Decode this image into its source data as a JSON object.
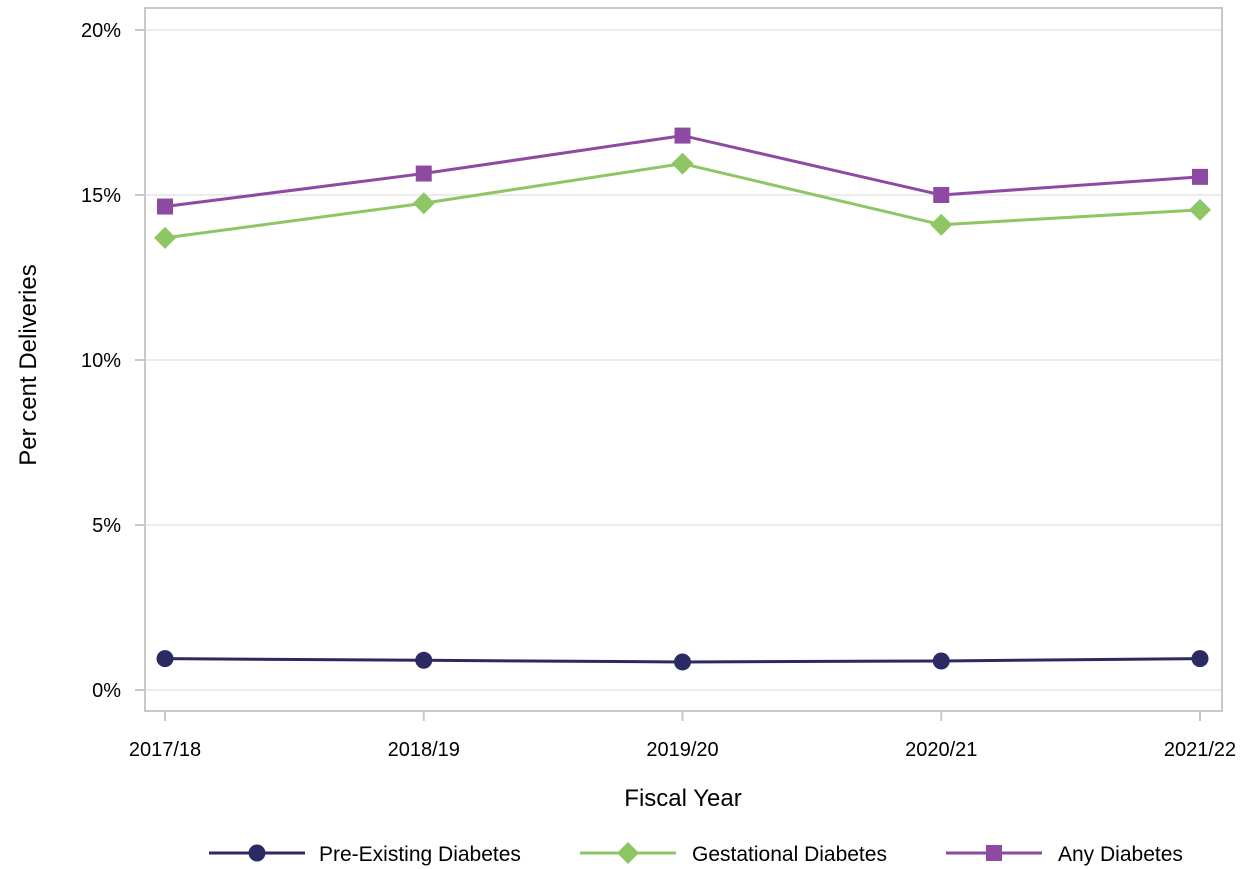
{
  "chart_data": {
    "type": "line",
    "title": "",
    "xlabel": "Fiscal Year",
    "ylabel": "Per cent Deliveries",
    "categories": [
      "2017/18",
      "2018/19",
      "2019/20",
      "2020/21",
      "2021/22"
    ],
    "ylim": [
      0,
      20
    ],
    "yticks": [
      0,
      5,
      10,
      15,
      20
    ],
    "ytick_labels": [
      "0%",
      "5%",
      "10%",
      "15%",
      "20%"
    ],
    "grid": "horizontal",
    "legend_position": "bottom",
    "series": [
      {
        "name": "Pre-Existing Diabetes",
        "values": [
          0.95,
          0.9,
          0.85,
          0.88,
          0.95
        ],
        "color": "#2b2a63",
        "marker": "circle"
      },
      {
        "name": "Gestational Diabetes",
        "values": [
          13.7,
          14.75,
          15.95,
          14.1,
          14.55
        ],
        "color": "#8dc663",
        "marker": "diamond"
      },
      {
        "name": "Any Diabetes",
        "values": [
          14.65,
          15.65,
          16.8,
          15.0,
          15.55
        ],
        "color": "#8e4aa2",
        "marker": "square"
      }
    ]
  }
}
